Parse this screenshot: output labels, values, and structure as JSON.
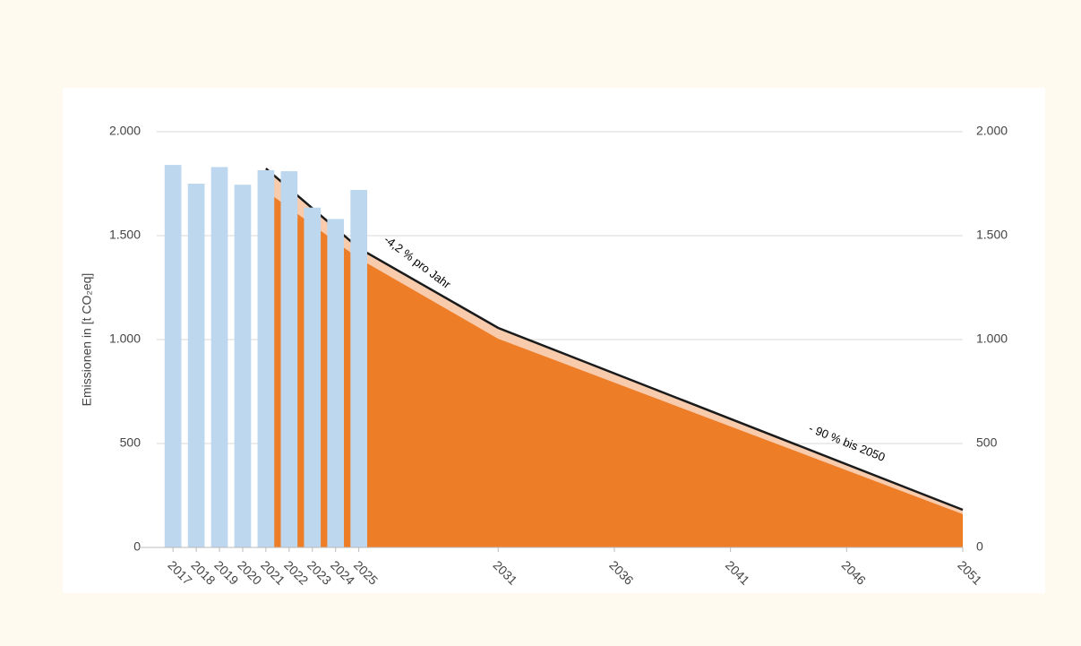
{
  "chart_data": {
    "type": "bar",
    "y_label": "Emissionen in [t CO₂eq]",
    "bars": {
      "x": [
        2017,
        2018,
        2019,
        2020,
        2021,
        2022,
        2023,
        2024,
        2025
      ],
      "values": [
        1840,
        1750,
        1830,
        1745,
        1815,
        1810,
        1635,
        1580,
        1720
      ],
      "color": "#bdd7ee"
    },
    "path": {
      "x": [
        2021,
        2025,
        2031,
        2051
      ],
      "values": [
        1823,
        1440,
        1056,
        181
      ],
      "band_color": "#f8cbad",
      "line_color": "#1a1a1a"
    },
    "area": {
      "x": [
        2021,
        2025,
        2031,
        2051
      ],
      "values": [
        1715,
        1390,
        1004,
        160
      ],
      "color": "#ed7d26"
    },
    "xlim": [
      2016.3,
      2051
    ],
    "xticks": [
      2017,
      2018,
      2019,
      2020,
      2021,
      2022,
      2023,
      2024,
      2025,
      2031,
      2036,
      2041,
      2046,
      2051
    ],
    "ylim": [
      0,
      2000
    ],
    "yticks": [
      0,
      {
        "value": 500,
        "label": "500"
      },
      {
        "value": 1000,
        "label": "1.000"
      },
      {
        "value": 1500,
        "label": "1.500"
      },
      {
        "value": 2000,
        "label": "2.000"
      }
    ],
    "grid": true,
    "annotations": [
      {
        "text": "-4,2 % pro Jahr",
        "x": 2027.5,
        "y": 1370
      },
      {
        "text": "- 90 % bis 2050",
        "x": 2046,
        "y": 500
      }
    ]
  }
}
